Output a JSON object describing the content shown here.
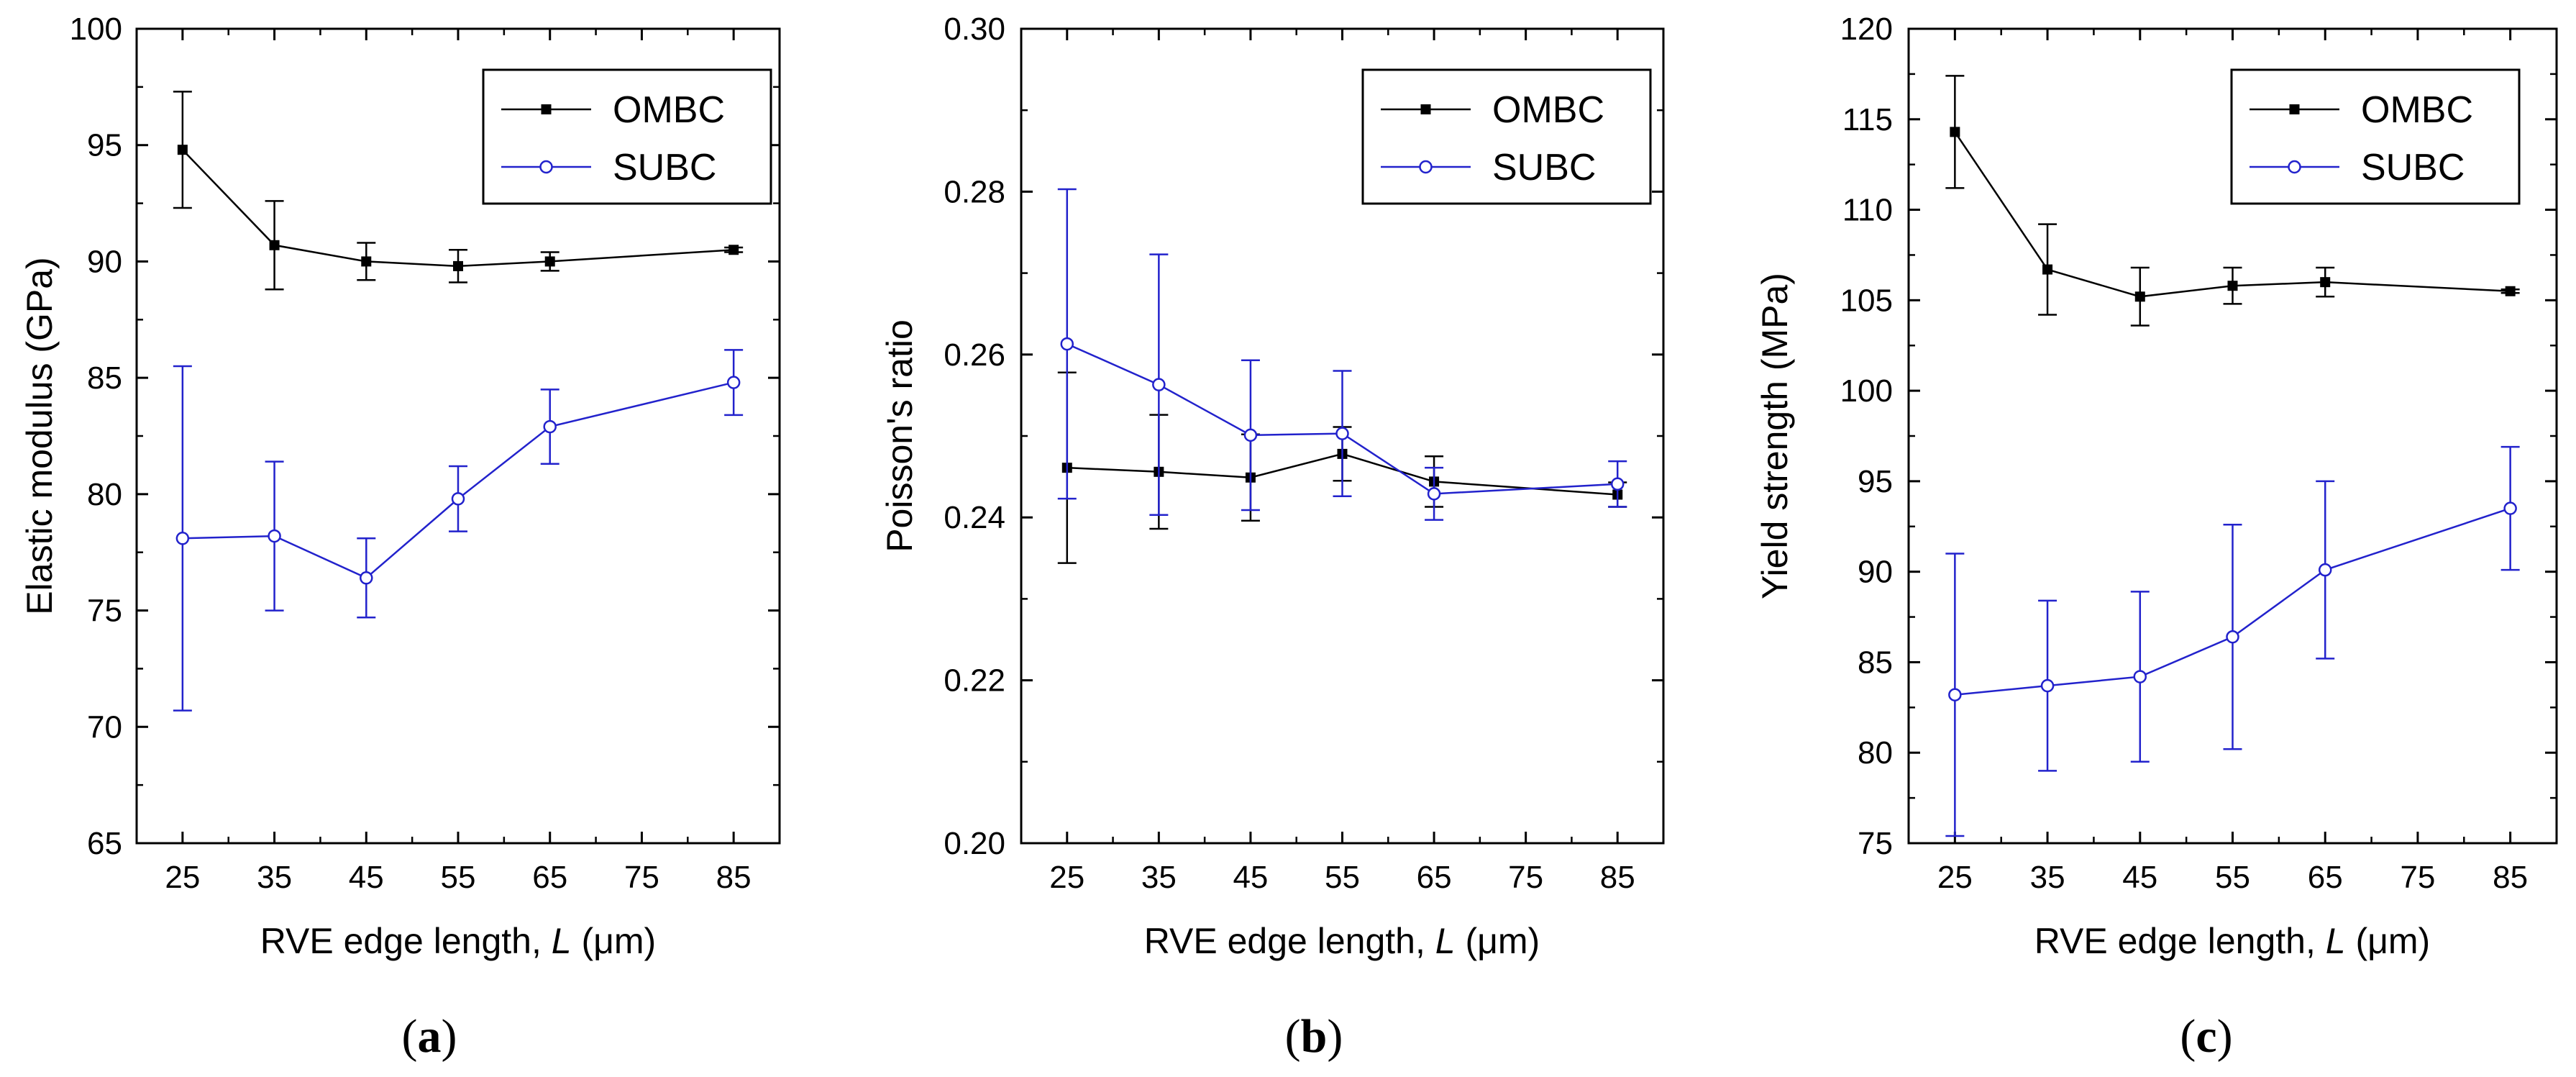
{
  "colors": {
    "ombc": "#000000",
    "subc": "#2222cc"
  },
  "chart_data": [
    {
      "type": "line",
      "panel": "a",
      "xlabel_prefix": "RVE edge length, ",
      "xlabel_var": "L",
      "xlabel_unit": " (μm)",
      "ylabel": "Elastic modulus (GPa)",
      "xlim": [
        20,
        90
      ],
      "ylim": [
        65,
        100
      ],
      "xticks": [
        25,
        35,
        45,
        55,
        65,
        75,
        85
      ],
      "yticks": [
        65,
        70,
        75,
        80,
        85,
        90,
        95,
        100
      ],
      "ytick_labels": [
        "65",
        "70",
        "75",
        "80",
        "85",
        "90",
        "95",
        "100"
      ],
      "legend": "top-right",
      "series": [
        {
          "name": "OMBC",
          "marker": "filled-square",
          "color": "#000000",
          "x": [
            25,
            35,
            45,
            55,
            65,
            85
          ],
          "y": [
            94.8,
            90.7,
            90.0,
            89.8,
            90.0,
            90.5
          ],
          "err": [
            2.5,
            1.9,
            0.8,
            0.7,
            0.4,
            0.1
          ]
        },
        {
          "name": "SUBC",
          "marker": "open-circle",
          "color": "#2222cc",
          "x": [
            25,
            35,
            45,
            55,
            65,
            85
          ],
          "y": [
            78.1,
            78.2,
            76.4,
            79.8,
            82.9,
            84.8
          ],
          "err": [
            7.4,
            3.2,
            1.7,
            1.4,
            1.6,
            1.4
          ]
        }
      ]
    },
    {
      "type": "line",
      "panel": "b",
      "xlabel_prefix": "RVE edge length, ",
      "xlabel_var": "L",
      "xlabel_unit": " (μm)",
      "ylabel": "Poisson's ratio",
      "xlim": [
        20,
        90
      ],
      "ylim": [
        0.2,
        0.3
      ],
      "xticks": [
        25,
        35,
        45,
        55,
        65,
        75,
        85
      ],
      "yticks": [
        0.2,
        0.22,
        0.24,
        0.26,
        0.28,
        0.3
      ],
      "ytick_labels": [
        "0.20",
        "0.22",
        "0.24",
        "0.26",
        "0.28",
        "0.30"
      ],
      "legend": "top-right",
      "series": [
        {
          "name": "OMBC",
          "marker": "filled-square",
          "color": "#000000",
          "x": [
            25,
            35,
            45,
            55,
            65,
            85
          ],
          "y": [
            0.2461,
            0.2456,
            0.2449,
            0.2478,
            0.2444,
            0.2428
          ],
          "err": [
            0.0117,
            0.007,
            0.0053,
            0.0033,
            0.0031,
            0.0015
          ]
        },
        {
          "name": "SUBC",
          "marker": "open-circle",
          "color": "#2222cc",
          "x": [
            25,
            35,
            45,
            55,
            65,
            85
          ],
          "y": [
            0.2613,
            0.2563,
            0.2501,
            0.2503,
            0.2429,
            0.2441
          ],
          "err": [
            0.019,
            0.016,
            0.0092,
            0.0077,
            0.0032,
            0.0028
          ]
        }
      ]
    },
    {
      "type": "line",
      "panel": "c",
      "xlabel_prefix": "RVE edge length, ",
      "xlabel_var": "L",
      "xlabel_unit": " (μm)",
      "ylabel": "Yield strength (MPa)",
      "xlim": [
        20,
        90
      ],
      "ylim": [
        75,
        120
      ],
      "xticks": [
        25,
        35,
        45,
        55,
        65,
        75,
        85
      ],
      "yticks": [
        75,
        80,
        85,
        90,
        95,
        100,
        105,
        110,
        115,
        120
      ],
      "ytick_labels": [
        "75",
        "80",
        "85",
        "90",
        "95",
        "100",
        "105",
        "110",
        "115",
        "120"
      ],
      "legend": "top-right",
      "series": [
        {
          "name": "OMBC",
          "marker": "filled-square",
          "color": "#000000",
          "x": [
            25,
            35,
            45,
            55,
            65,
            85
          ],
          "y": [
            114.3,
            106.7,
            105.2,
            105.8,
            106.0,
            105.5
          ],
          "err": [
            3.1,
            2.5,
            1.6,
            1.0,
            0.8,
            0.1
          ]
        },
        {
          "name": "SUBC",
          "marker": "open-circle",
          "color": "#2222cc",
          "x": [
            25,
            35,
            45,
            55,
            65,
            85
          ],
          "y": [
            83.2,
            83.7,
            84.2,
            86.4,
            90.1,
            93.5
          ],
          "err": [
            7.8,
            4.7,
            4.7,
            6.2,
            4.9,
            3.4
          ]
        }
      ]
    }
  ]
}
